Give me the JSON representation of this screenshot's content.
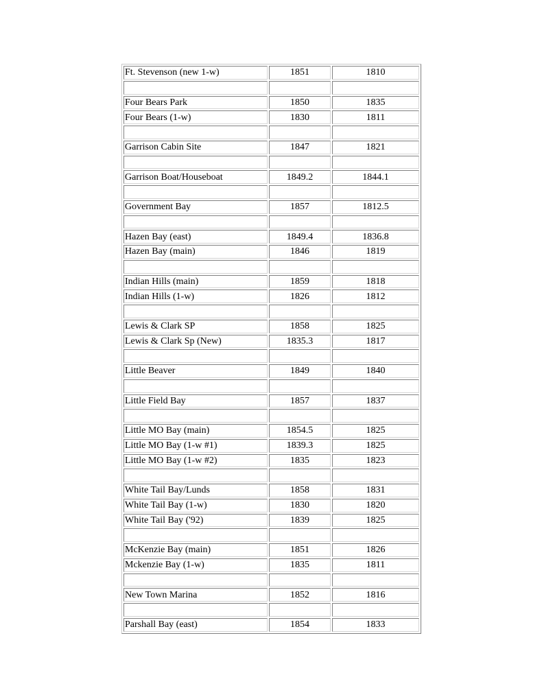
{
  "rows": [
    [
      "Ft. Stevenson (new 1-w)",
      "1851",
      "1810"
    ],
    [
      "",
      "",
      ""
    ],
    [
      "Four Bears Park",
      "1850",
      "1835"
    ],
    [
      "Four Bears (1-w)",
      "1830",
      "1811"
    ],
    [
      "",
      "",
      ""
    ],
    [
      "Garrison Cabin Site",
      "1847",
      "1821"
    ],
    [
      "",
      "",
      ""
    ],
    [
      "Garrison Boat/Houseboat",
      "1849.2",
      "1844.1"
    ],
    [
      "",
      "",
      ""
    ],
    [
      "Government Bay",
      "1857",
      "1812.5"
    ],
    [
      "",
      "",
      ""
    ],
    [
      "Hazen Bay (east)",
      "1849.4",
      "1836.8"
    ],
    [
      "Hazen Bay (main)",
      "1846",
      "1819"
    ],
    [
      "",
      "",
      ""
    ],
    [
      "Indian Hills (main)",
      "1859",
      "1818"
    ],
    [
      "Indian Hills (1-w)",
      "1826",
      "1812"
    ],
    [
      "",
      "",
      ""
    ],
    [
      "Lewis & Clark SP",
      "1858",
      "1825"
    ],
    [
      "Lewis & Clark Sp (New)",
      "1835.3",
      "1817"
    ],
    [
      "",
      "",
      ""
    ],
    [
      "Little Beaver",
      "1849",
      "1840"
    ],
    [
      "",
      "",
      ""
    ],
    [
      "Little Field Bay",
      "1857",
      "1837"
    ],
    [
      "",
      "",
      ""
    ],
    [
      "Little MO Bay (main)",
      "1854.5",
      "1825"
    ],
    [
      "Little MO Bay (1-w #1)",
      "1839.3",
      "1825"
    ],
    [
      "Little MO Bay (1-w #2)",
      "1835",
      "1823"
    ],
    [
      "",
      "",
      ""
    ],
    [
      "White Tail Bay/Lunds",
      "1858",
      "1831"
    ],
    [
      "White Tail Bay (1-w)",
      "1830",
      "1820"
    ],
    [
      "White Tail Bay ('92)",
      "1839",
      "1825"
    ],
    [
      "",
      "",
      ""
    ],
    [
      "McKenzie Bay (main)",
      "1851",
      "1826"
    ],
    [
      "Mckenzie Bay (1-w)",
      "1835",
      "1811"
    ],
    [
      "",
      "",
      ""
    ],
    [
      "New Town Marina",
      "1852",
      "1816"
    ],
    [
      "",
      "",
      ""
    ],
    [
      "Parshall Bay (east)",
      "1854",
      "1833"
    ]
  ]
}
